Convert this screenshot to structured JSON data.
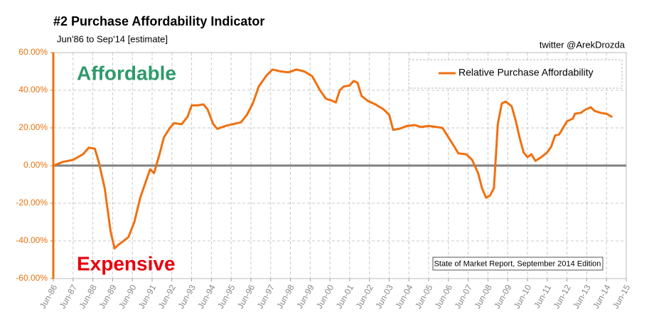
{
  "chart_data": {
    "type": "line",
    "title": "#2 Purchase Affordability Indicator",
    "subtitle": "Jun'86 to Sep'14 [estimate]",
    "annotations": [
      "twitter @ArekDrozda",
      "Affordable",
      "Expensive",
      "State of Market Report, September 2014 Edition"
    ],
    "x": [
      1986.5,
      1987.0,
      1987.5,
      1988.0,
      1988.3,
      1988.6,
      1988.8,
      1989.1,
      1989.4,
      1989.6,
      1989.8,
      1990.0,
      1990.3,
      1990.6,
      1990.9,
      1991.2,
      1991.4,
      1991.6,
      1991.9,
      1992.1,
      1992.4,
      1992.6,
      1993.0,
      1993.3,
      1993.5,
      1993.8,
      1994.1,
      1994.3,
      1994.6,
      1994.8,
      1995.2,
      1995.6,
      1996.0,
      1996.3,
      1996.6,
      1996.9,
      1997.3,
      1997.6,
      1998.0,
      1998.4,
      1998.8,
      1999.2,
      1999.6,
      2000.0,
      2000.3,
      2000.6,
      2000.8,
      2001.0,
      2001.2,
      2001.5,
      2001.7,
      2001.9,
      2002.1,
      2002.4,
      2002.8,
      2003.2,
      2003.5,
      2003.7,
      2004.0,
      2004.4,
      2004.8,
      2005.1,
      2005.5,
      2005.9,
      2006.2,
      2006.5,
      2006.8,
      2007.0,
      2007.4,
      2007.7,
      2008.0,
      2008.2,
      2008.4,
      2008.6,
      2008.8,
      2008.9,
      2009.0,
      2009.2,
      2009.4,
      2009.7,
      2009.9,
      2010.1,
      2010.3,
      2010.5,
      2010.7,
      2010.9,
      2011.2,
      2011.5,
      2011.7,
      2011.9,
      2012.1,
      2012.3,
      2012.5,
      2012.8,
      2012.9,
      2013.2,
      2013.4,
      2013.7,
      2013.9,
      2014.2,
      2014.5,
      2014.75
    ],
    "series": [
      {
        "name": "Relative Purchase Affordability",
        "color": "#f07010",
        "values": [
          0,
          2,
          3,
          6,
          9.5,
          9,
          2,
          -12,
          -35,
          -44,
          -42,
          -40.5,
          -38,
          -30,
          -17,
          -8,
          -2,
          -4,
          7,
          15,
          20,
          22.5,
          22,
          26,
          32,
          32,
          32.5,
          30,
          22,
          19.5,
          21,
          22,
          23,
          27,
          33,
          42,
          48,
          51,
          50,
          49.5,
          51,
          50,
          47.5,
          40,
          35.5,
          34.5,
          33.5,
          40,
          42,
          42.5,
          45,
          44,
          37,
          34.5,
          32.5,
          30,
          27,
          19,
          19.5,
          21,
          21.5,
          20.5,
          21,
          20.5,
          20,
          15,
          10,
          6.5,
          6,
          3,
          -4,
          -12,
          -17,
          -16,
          -12,
          5,
          22,
          33,
          34,
          31.5,
          24,
          15,
          7,
          4.5,
          6,
          2.5,
          4.5,
          7,
          10,
          16,
          16.5,
          20,
          23.5,
          25,
          27.5,
          28,
          29.5,
          31,
          29,
          28,
          27.5,
          26
        ]
      }
    ],
    "xlim": [
      1986.5,
      2015.5
    ],
    "xticks": [
      {
        "value": 1986.5,
        "label": "Jun-86"
      },
      {
        "value": 1987.5,
        "label": "Jun-87"
      },
      {
        "value": 1988.5,
        "label": "Jun-88"
      },
      {
        "value": 1989.5,
        "label": "Jun-89"
      },
      {
        "value": 1990.5,
        "label": "Jun-90"
      },
      {
        "value": 1991.5,
        "label": "Jun-91"
      },
      {
        "value": 1992.5,
        "label": "Jun-92"
      },
      {
        "value": 1993.5,
        "label": "Jun-93"
      },
      {
        "value": 1994.5,
        "label": "Jun-94"
      },
      {
        "value": 1995.5,
        "label": "Jun-95"
      },
      {
        "value": 1996.5,
        "label": "Jun-96"
      },
      {
        "value": 1997.5,
        "label": "Jun-97"
      },
      {
        "value": 1998.5,
        "label": "Jun-98"
      },
      {
        "value": 1999.5,
        "label": "Jun-99"
      },
      {
        "value": 2000.5,
        "label": "Jun-00"
      },
      {
        "value": 2001.5,
        "label": "Jun-01"
      },
      {
        "value": 2002.5,
        "label": "Jun-02"
      },
      {
        "value": 2003.5,
        "label": "Jun-03"
      },
      {
        "value": 2004.5,
        "label": "Jun-04"
      },
      {
        "value": 2005.5,
        "label": "Jun-05"
      },
      {
        "value": 2006.5,
        "label": "Jun-06"
      },
      {
        "value": 2007.5,
        "label": "Jun-07"
      },
      {
        "value": 2008.5,
        "label": "Jun-08"
      },
      {
        "value": 2009.5,
        "label": "Jun-09"
      },
      {
        "value": 2010.5,
        "label": "Jun-10"
      },
      {
        "value": 2011.5,
        "label": "Jun-11"
      },
      {
        "value": 2012.5,
        "label": "Jun-12"
      },
      {
        "value": 2013.5,
        "label": "Jun-13"
      },
      {
        "value": 2014.5,
        "label": "Jun-14"
      },
      {
        "value": 2015.5,
        "label": "Jun-15"
      }
    ],
    "ylim": [
      -60,
      60
    ],
    "yticks": [
      {
        "value": -60,
        "label": "-60.00%"
      },
      {
        "value": -40,
        "label": "-40.00%"
      },
      {
        "value": -20,
        "label": "-20.00%"
      },
      {
        "value": 0,
        "label": "0.00%"
      },
      {
        "value": 20,
        "label": "20.00%"
      },
      {
        "value": 40,
        "label": "40.00%"
      },
      {
        "value": 60,
        "label": "60.00%"
      }
    ],
    "grid": true,
    "legend": "upper right"
  }
}
